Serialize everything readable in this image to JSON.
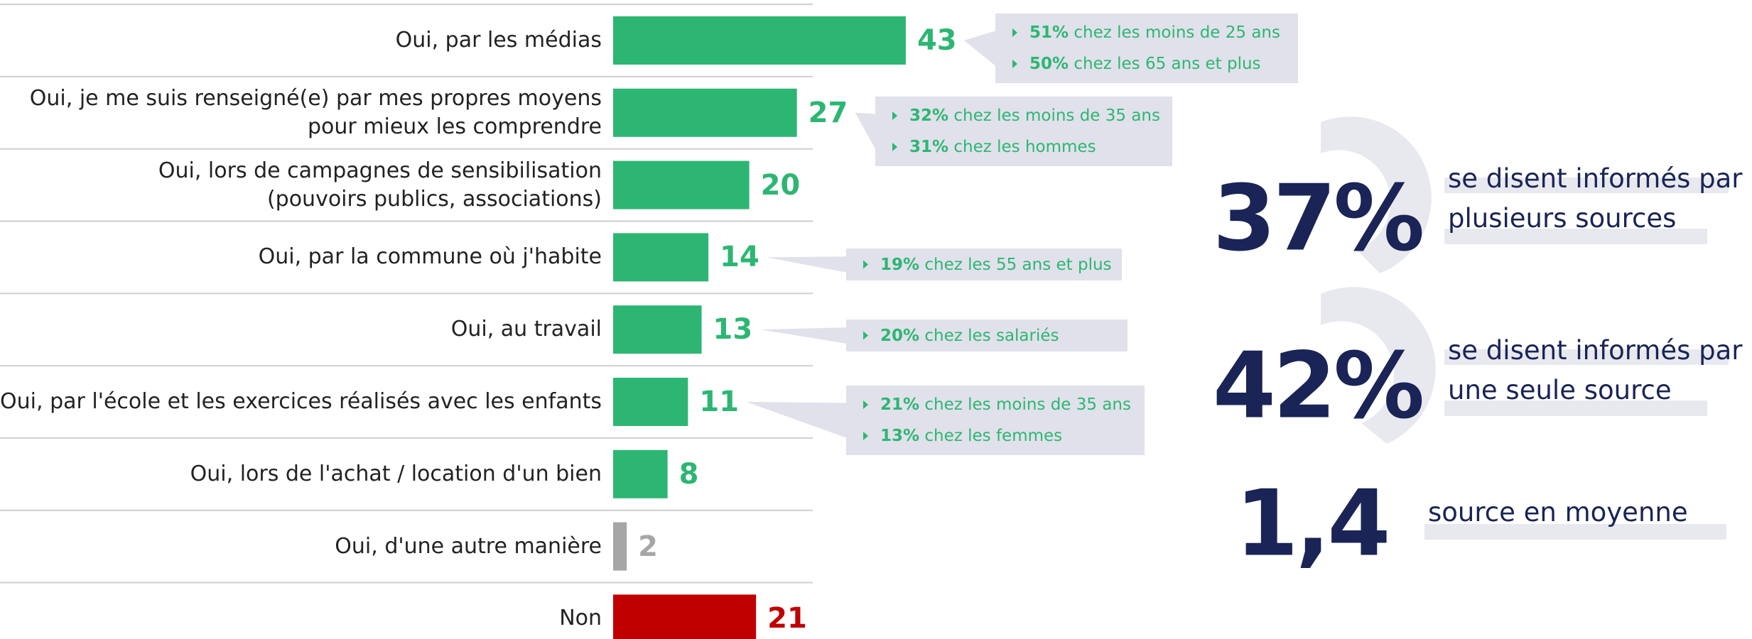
{
  "chart_data": {
    "type": "bar",
    "categories": [
      "Oui, par les médias",
      "Oui, je me suis renseigné(e) par mes propres moyens\npour mieux les comprendre",
      "Oui, lors de campagnes de sensibilisation\n(pouvoirs publics, associations)",
      "Oui, par la commune où j'habite",
      "Oui, au travail",
      "Oui, par l'école et les exercices réalisés avec les enfants",
      "Oui, lors de l'achat / location d'un bien",
      "Oui, d'une autre manière",
      "Non"
    ],
    "values": [
      43,
      27,
      20,
      14,
      13,
      11,
      8,
      2,
      21
    ],
    "colors": [
      "#2db673",
      "#2db673",
      "#2db673",
      "#2db673",
      "#2db673",
      "#2db673",
      "#2db673",
      "#a6a6a6",
      "#c00000"
    ],
    "callouts": [
      [
        {
          "bold": "51%",
          "text": " chez les moins de 25 ans"
        },
        {
          "bold": "50%",
          "text": " chez les 65 ans et plus"
        }
      ],
      [
        {
          "bold": "32%",
          "text": " chez les moins de 35 ans"
        },
        {
          "bold": "31%",
          "text": " chez les hommes"
        }
      ],
      null,
      [
        {
          "bold": "19%",
          "text": " chez les 55 ans et plus"
        }
      ],
      [
        {
          "bold": "20%",
          "text": " chez les salariés"
        }
      ],
      [
        {
          "bold": "21%",
          "text": " chez les moins de 35 ans"
        },
        {
          "bold": "13%",
          "text": " chez les femmes"
        }
      ],
      null,
      null,
      null
    ],
    "stats": [
      {
        "value": "37%",
        "text": "se disent informés par\nplusieurs sources"
      },
      {
        "value": "42%",
        "text": "se disent informés par\nune seule source"
      },
      {
        "value": "1,4",
        "text": "source en moyenne"
      }
    ]
  }
}
